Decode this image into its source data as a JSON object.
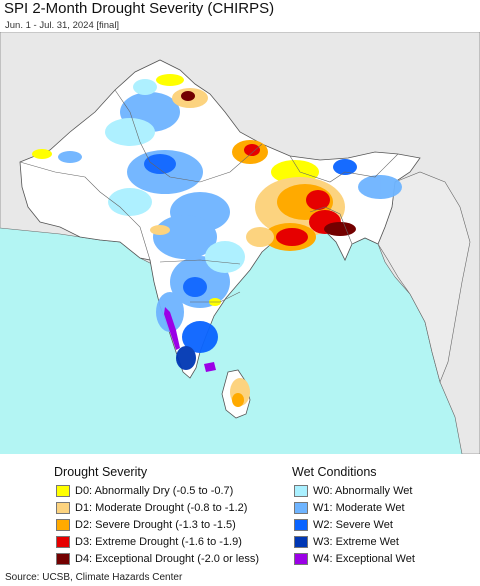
{
  "title": "SPI 2-Month Drought Severity (CHIRPS)",
  "subtitle": "Jun. 1 - Jul. 31, 2024 [final]",
  "legend": {
    "drought_heading": "Drought Severity",
    "wet_heading": "Wet Conditions",
    "drought": [
      {
        "label": "D0: Abnormally Dry (-0.5 to -0.7)",
        "color": "#ffff00"
      },
      {
        "label": "D1: Moderate Drought (-0.8 to -1.2)",
        "color": "#fcd37f"
      },
      {
        "label": "D2: Severe Drought (-1.3 to -1.5)",
        "color": "#ffaa00"
      },
      {
        "label": "D3: Extreme Drought (-1.6 to -1.9)",
        "color": "#e60000"
      },
      {
        "label": "D4: Exceptional Drought (-2.0 or less)",
        "color": "#730000"
      }
    ],
    "wet": [
      {
        "label": "W0: Abnormally Wet",
        "color": "#aaf0ff"
      },
      {
        "label": "W1: Moderate Wet",
        "color": "#6eb4ff"
      },
      {
        "label": "W2: Severe Wet",
        "color": "#0a64ff"
      },
      {
        "label": "W3: Extreme Wet",
        "color": "#0037b4"
      },
      {
        "label": "W4: Exceptional Wet",
        "color": "#9b00e6"
      }
    ]
  },
  "colors": {
    "sea": "#b3f5f3",
    "land_outside": "#e8e8e8",
    "land_region": "#ffffff",
    "border": "#555555"
  },
  "source": "Source: UCSB, Climate Hazards Center"
}
